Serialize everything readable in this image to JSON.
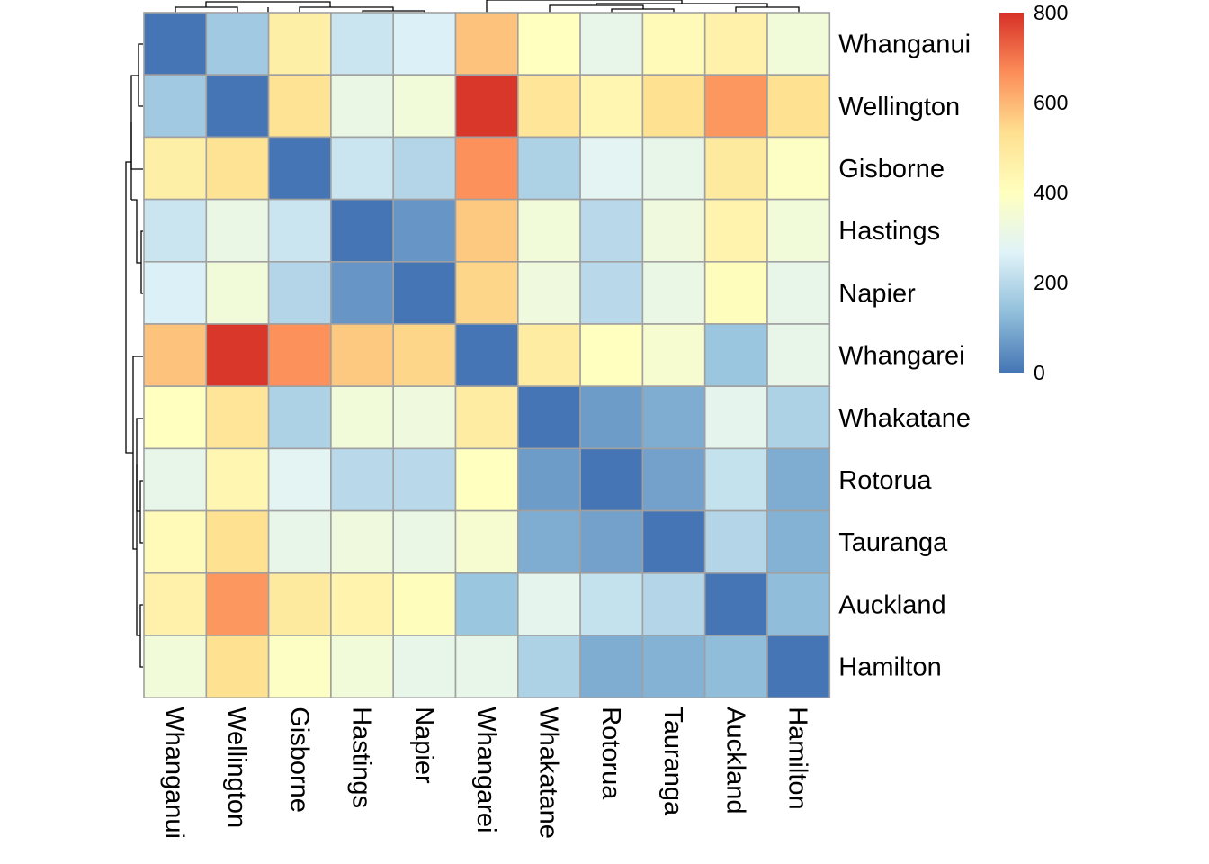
{
  "chart_data": {
    "type": "heatmap",
    "title": "",
    "xlabel": "",
    "ylabel": "",
    "rows": [
      "Whanganui",
      "Wellington",
      "Gisborne",
      "Hastings",
      "Napier",
      "Whangarei",
      "Whakatane",
      "Rotorua",
      "Tauranga",
      "Auckland",
      "Hamilton"
    ],
    "columns": [
      "Whanganui",
      "Wellington",
      "Gisborne",
      "Hastings",
      "Napier",
      "Whangarei",
      "Whakatane",
      "Rotorua",
      "Tauranga",
      "Auckland",
      "Hamilton"
    ],
    "values": [
      [
        0,
        160,
        470,
        230,
        260,
        580,
        400,
        300,
        420,
        460,
        340
      ],
      [
        160,
        0,
        520,
        310,
        340,
        790,
        510,
        440,
        530,
        650,
        530
      ],
      [
        470,
        520,
        0,
        230,
        190,
        660,
        180,
        280,
        300,
        490,
        390
      ],
      [
        230,
        310,
        230,
        0,
        60,
        570,
        340,
        200,
        330,
        450,
        340
      ],
      [
        260,
        340,
        190,
        60,
        0,
        550,
        330,
        200,
        310,
        410,
        300
      ],
      [
        580,
        790,
        660,
        570,
        550,
        0,
        480,
        400,
        360,
        150,
        300
      ],
      [
        400,
        510,
        180,
        340,
        330,
        480,
        0,
        70,
        100,
        290,
        180
      ],
      [
        300,
        440,
        280,
        200,
        200,
        400,
        70,
        0,
        80,
        220,
        100
      ],
      [
        420,
        530,
        300,
        330,
        310,
        360,
        100,
        80,
        0,
        190,
        110
      ],
      [
        460,
        650,
        490,
        450,
        410,
        150,
        290,
        220,
        190,
        0,
        130
      ],
      [
        340,
        530,
        390,
        340,
        300,
        300,
        180,
        100,
        110,
        130,
        0
      ]
    ],
    "color_scale": {
      "min": 0,
      "max": 800,
      "ticks": [
        "0",
        "200",
        "400",
        "600",
        "800"
      ],
      "colors": [
        "#4575b4",
        "#91bfdb",
        "#e0f3f8",
        "#ffffbf",
        "#fee090",
        "#fc8d59",
        "#d73027"
      ]
    },
    "grid_color": "#a0a0a0",
    "legend_position": "top-right"
  }
}
